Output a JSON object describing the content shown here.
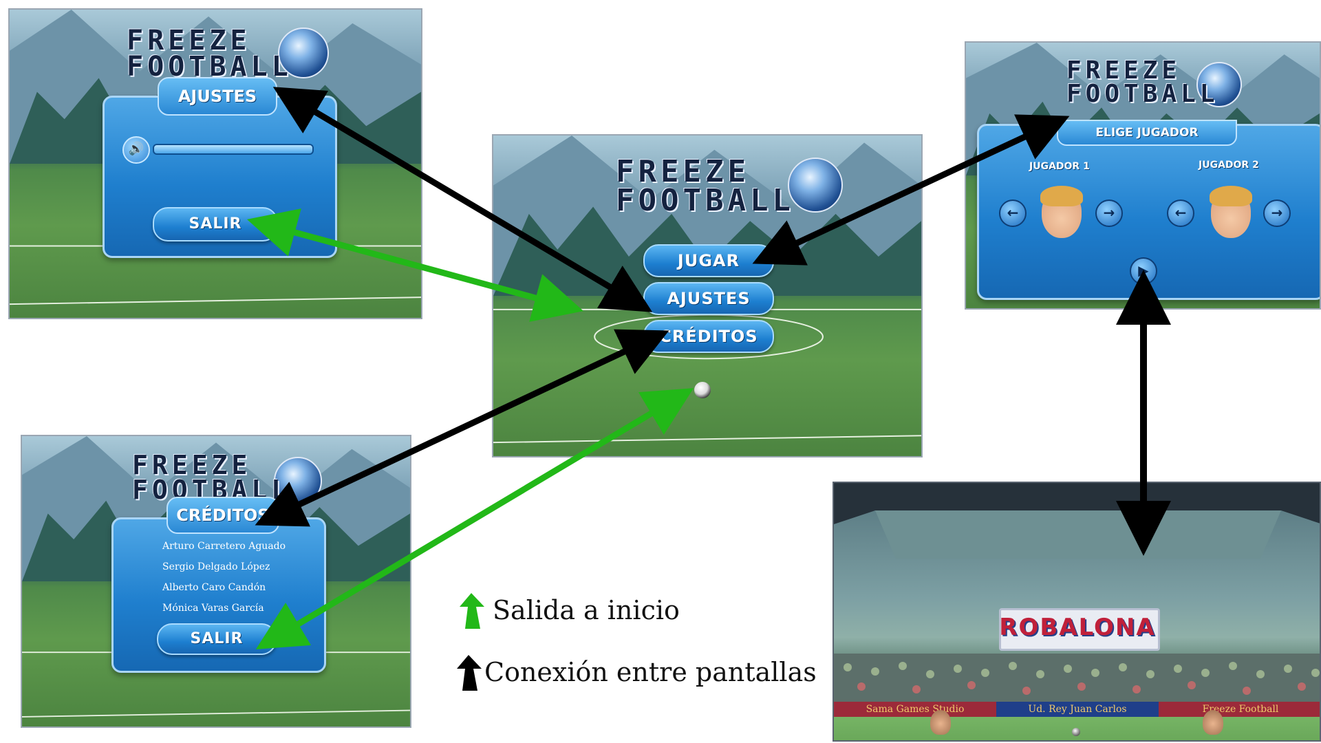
{
  "logo": {
    "line1": "FREEZE",
    "line2": "FOOTBALL"
  },
  "ajustes_screen": {
    "title": "AJUSTES",
    "exit_label": "SALIR"
  },
  "main_menu": {
    "play_label": "JUGAR",
    "settings_label": "AJUSTES",
    "credits_label": "CRÉDITOS"
  },
  "player_select": {
    "title": "ELIGE JUGADOR",
    "player1_label": "JUGADOR 1",
    "player2_label": "JUGADOR 2"
  },
  "credits_screen": {
    "title": "CRÉDITOS",
    "names": [
      "Arturo Carretero Aguado",
      "Sergio Delgado López",
      "Alberto Caro Candón",
      "Mónica Varas García"
    ],
    "exit_label": "SALIR"
  },
  "game_screen": {
    "stadium_sign": "ROBALONA",
    "banner_left": "Sama Games Studio",
    "banner_center": "Ud. Rey Juan Carlos",
    "banner_right": "Freeze Football"
  },
  "legend": {
    "green_label": "Salida a inicio",
    "black_label": "Conexión entre pantallas",
    "green_color": "#22b818",
    "black_color": "#000000"
  }
}
